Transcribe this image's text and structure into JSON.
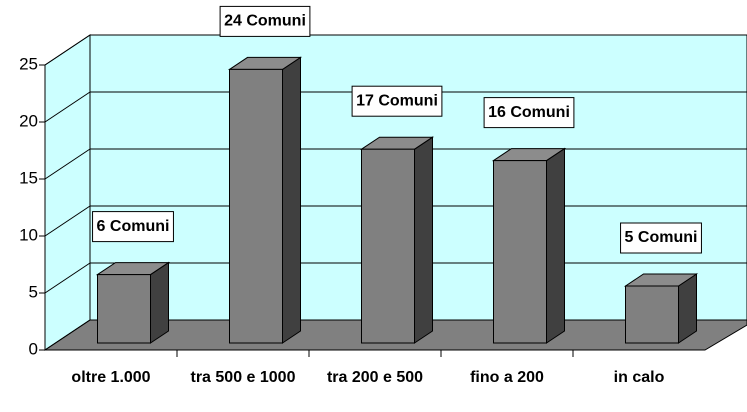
{
  "chart_data": {
    "type": "bar3d",
    "categories": [
      "oltre 1.000",
      "tra 500 e 1000",
      "tra 200 e 500",
      "fino a 200",
      "in calo"
    ],
    "values": [
      6,
      24,
      17,
      16,
      5
    ],
    "value_labels": [
      "6 Comuni",
      "24 Comuni",
      "17 Comuni",
      "16 Comuni",
      "5 Comuni"
    ],
    "color": "#808080",
    "ylim": [
      0,
      25
    ],
    "yticks": [
      0,
      5,
      10,
      15,
      20,
      25
    ],
    "grid": true
  }
}
